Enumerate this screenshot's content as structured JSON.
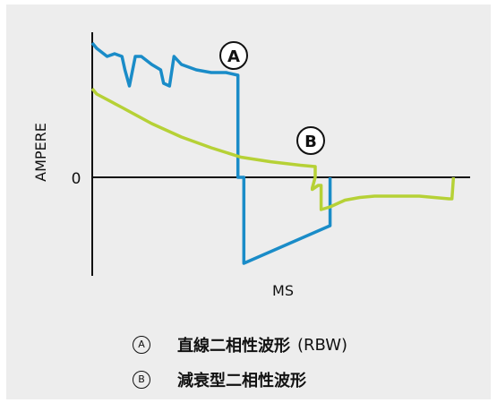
{
  "chart_data": {
    "type": "line",
    "title": "",
    "xlabel": "MS",
    "ylabel": "AMPERE",
    "y_tick_labels": [
      "0"
    ],
    "grid": false,
    "series": [
      {
        "marker": "A",
        "name": "直線二相性波形",
        "name_suffix": "(RBW)",
        "color": "#1a8cc8",
        "points": [
          [
            0.0,
            0.5
          ],
          [
            0.3,
            0.48
          ],
          [
            1.0,
            0.45
          ],
          [
            1.5,
            0.46
          ],
          [
            2.0,
            0.45
          ],
          [
            2.2,
            0.4
          ],
          [
            2.5,
            0.34
          ],
          [
            2.9,
            0.45
          ],
          [
            3.3,
            0.45
          ],
          [
            4.0,
            0.42
          ],
          [
            4.6,
            0.4
          ],
          [
            4.8,
            0.35
          ],
          [
            5.2,
            0.34
          ],
          [
            5.5,
            0.45
          ],
          [
            6.0,
            0.42
          ],
          [
            7.0,
            0.4
          ],
          [
            8.0,
            0.39
          ],
          [
            9.0,
            0.39
          ],
          [
            9.8,
            0.38
          ],
          [
            9.8,
            0.0
          ],
          [
            10.2,
            0.0
          ],
          [
            10.2,
            -0.32
          ],
          [
            16.0,
            -0.18
          ],
          [
            16.0,
            0.0
          ]
        ]
      },
      {
        "marker": "B",
        "name": "減衰型二相性波形",
        "name_suffix": "",
        "color": "#b6d136",
        "points": [
          [
            0.0,
            0.33
          ],
          [
            0.3,
            0.31
          ],
          [
            2.0,
            0.26
          ],
          [
            4.0,
            0.2
          ],
          [
            6.0,
            0.15
          ],
          [
            8.0,
            0.11
          ],
          [
            10.0,
            0.075
          ],
          [
            12.0,
            0.058
          ],
          [
            14.0,
            0.045
          ],
          [
            15.0,
            0.04
          ],
          [
            15.0,
            0.0
          ],
          [
            14.8,
            -0.04
          ],
          [
            14.8,
            -0.045
          ],
          [
            15.2,
            -0.03
          ],
          [
            15.4,
            -0.03
          ],
          [
            15.4,
            -0.12
          ],
          [
            16.0,
            -0.11
          ],
          [
            17.0,
            -0.085
          ],
          [
            18.0,
            -0.075
          ],
          [
            19.0,
            -0.07
          ],
          [
            21.0,
            -0.07
          ],
          [
            22.0,
            -0.07
          ],
          [
            23.0,
            -0.075
          ],
          [
            24.0,
            -0.08
          ],
          [
            24.2,
            -0.08
          ],
          [
            24.3,
            0.0
          ]
        ]
      }
    ]
  }
}
